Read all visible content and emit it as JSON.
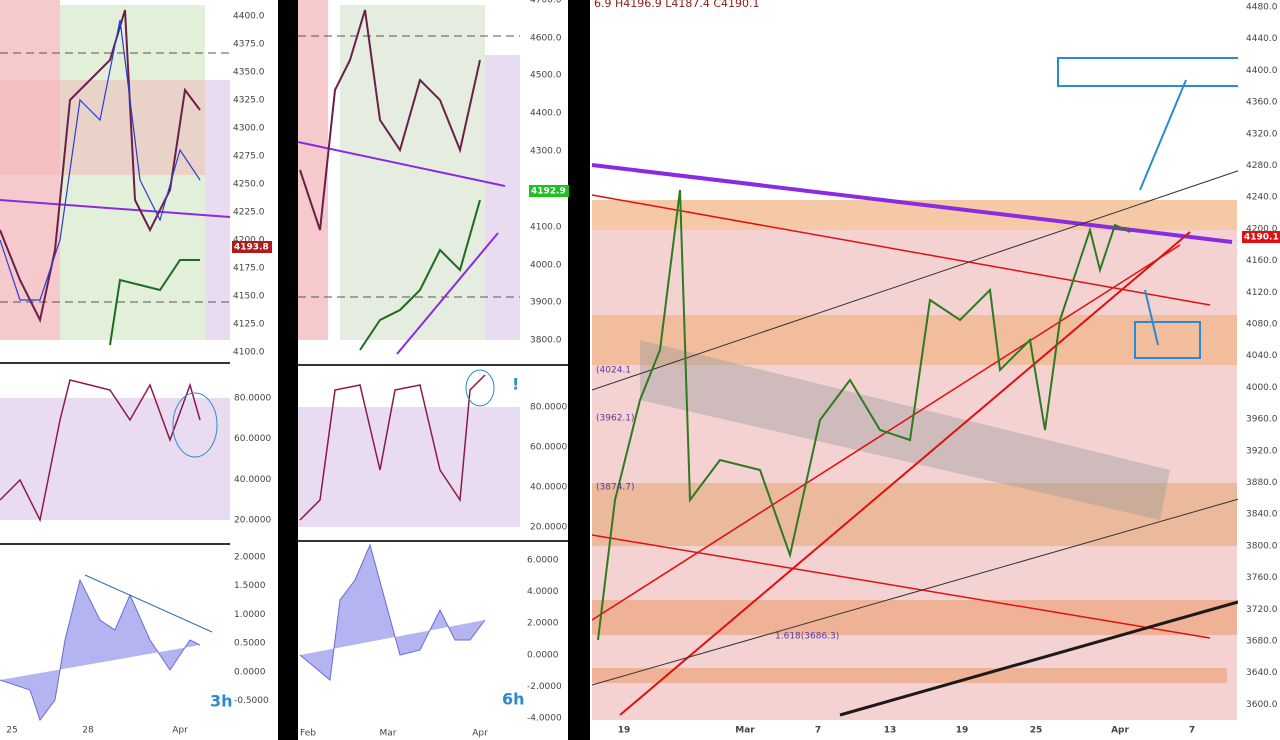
{
  "panels": [
    {
      "price_axis": [
        "4400.0",
        "4375.0",
        "4350.0",
        "4325.0",
        "4300.0",
        "4275.0",
        "4250.0",
        "4225.0",
        "4200.0",
        "4175.0",
        "4150.0",
        "4125.0",
        "4100.0"
      ],
      "last_price": "4193.8",
      "oscillator_axis": [
        "80.0000",
        "60.0000",
        "40.0000",
        "20.0000"
      ],
      "histogram_axis": [
        "2.0000",
        "1.5000",
        "1.0000",
        "0.5000",
        "0.0000",
        "-0.5000"
      ],
      "time_axis": [
        "25",
        "28",
        "Apr"
      ],
      "timeframe": "3h"
    },
    {
      "price_axis": [
        "4700.0",
        "4600.0",
        "4500.0",
        "4400.0",
        "4300.0",
        "4100.0",
        "4000.0",
        "3900.0",
        "3800.0"
      ],
      "last_price": "4192.9",
      "oscillator_axis": [
        "80.0000",
        "60.0000",
        "40.0000",
        "20.0000"
      ],
      "oscillator_note": "!",
      "histogram_axis": [
        "6.0000",
        "4.0000",
        "2.0000",
        "0.0000",
        "-2.0000",
        "-4.0000"
      ],
      "time_axis": [
        "Feb",
        "Mar",
        "Apr"
      ],
      "timeframe": "6h"
    },
    {
      "header": "6.9  H4196.9  L4187.4  C4190.1",
      "price_axis": [
        "4480.0",
        "4440.0",
        "4400.0",
        "4360.0",
        "4320.0",
        "4280.0",
        "4240.0",
        "4200.0",
        "4160.0",
        "4120.0",
        "4080.0",
        "4040.0",
        "4000.0",
        "3960.0",
        "3920.0",
        "3880.0",
        "3840.0",
        "3800.0",
        "3760.0",
        "3720.0",
        "3680.0",
        "3640.0",
        "3600.0"
      ],
      "last_price": "4190.1",
      "time_axis": [
        "19",
        "Mar",
        "7",
        "13",
        "19",
        "25",
        "Apr",
        "7"
      ],
      "annotations": [
        "(4024.1",
        "(3962.1)",
        "(3874.7)",
        "1.618(3686.3)"
      ]
    }
  ]
}
